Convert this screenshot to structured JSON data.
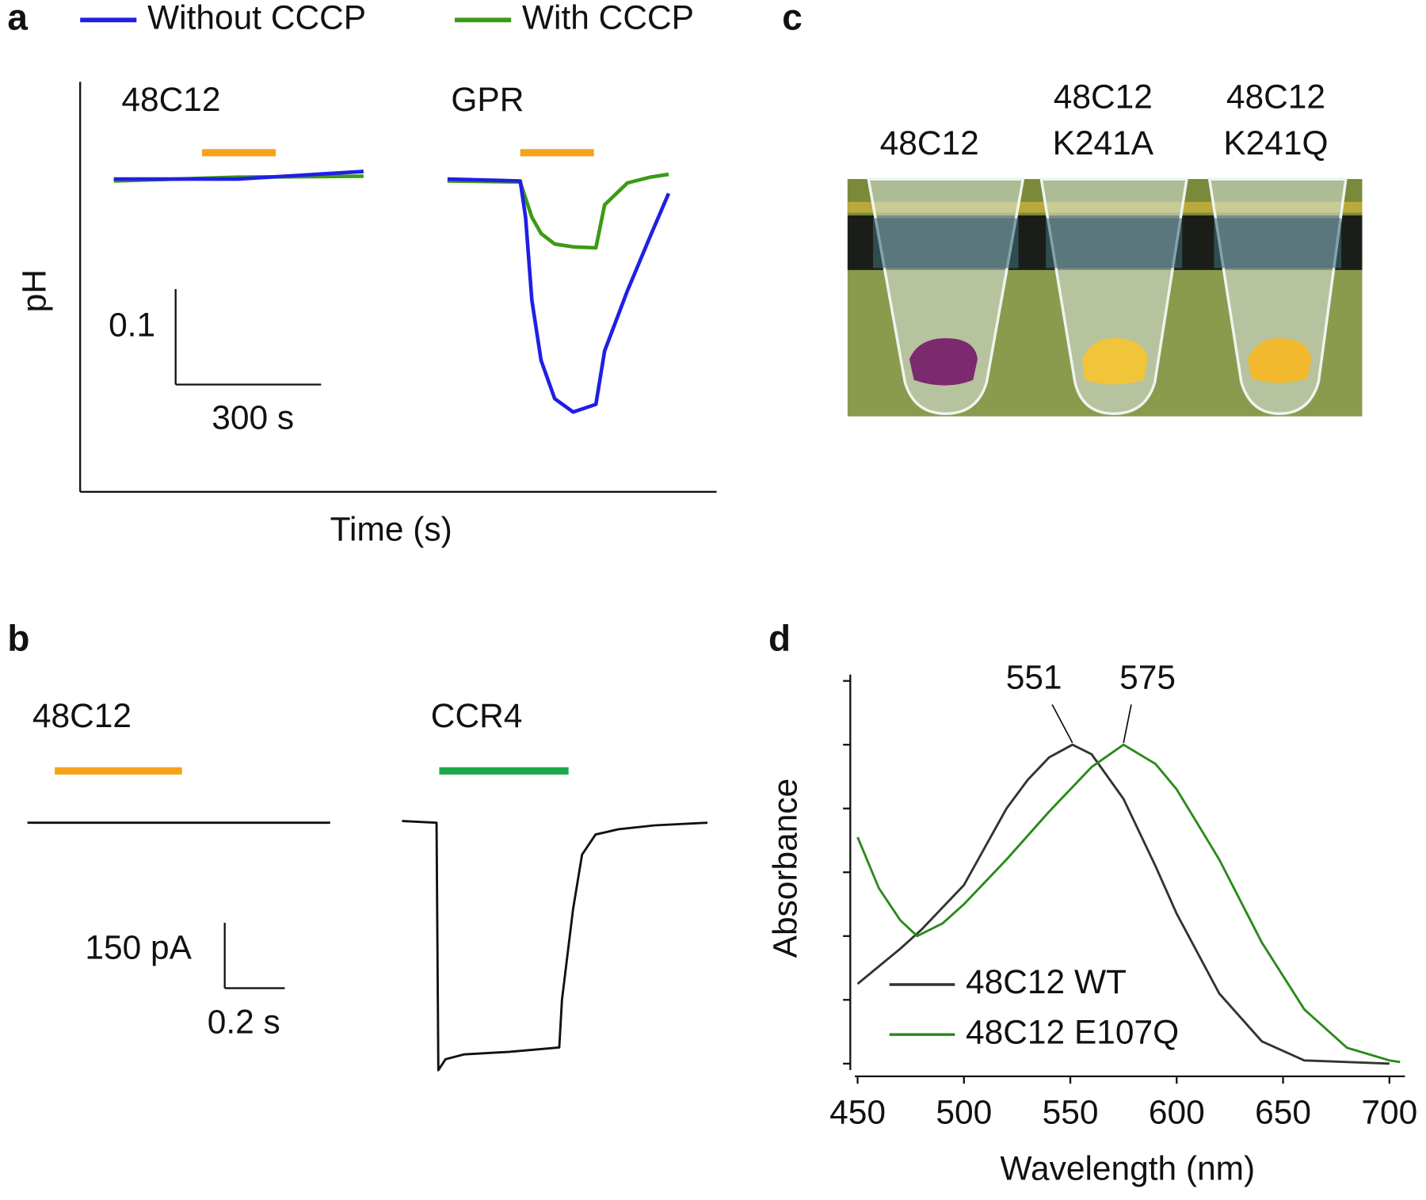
{
  "chart_data": [
    {
      "type": "line",
      "panel_label": "a",
      "y_label": "pH",
      "x_label": "Time (s)",
      "series": [
        {
          "name": "Without CCCP",
          "color": "#1f1fe6"
        },
        {
          "name": "With CCCP",
          "color": "#3c9a14"
        }
      ],
      "light_color": "#f5a31a",
      "traces": [
        {
          "name": "48C12",
          "light": [
            182,
            334
          ],
          "x": [
            0,
            255,
            515
          ],
          "values": [
            [
              0,
              0,
              0.008
            ],
            [
              -0.002,
              0.002,
              0.003
            ]
          ]
        },
        {
          "name": "GPR",
          "light": [
            150,
            302
          ],
          "x": [
            0,
            150,
            161,
            174,
            193,
            221,
            259,
            306,
            324,
            371,
            418,
            456
          ],
          "values": [
            [
              0,
              -0.002,
              -0.04,
              -0.127,
              -0.19,
              -0.23,
              -0.244,
              -0.236,
              -0.18,
              -0.117,
              -0.06,
              -0.015
            ],
            [
              -0.002,
              -0.003,
              -0.02,
              -0.04,
              -0.057,
              -0.068,
              -0.071,
              -0.072,
              -0.027,
              -0.004,
              0.002,
              0.005
            ]
          ]
        }
      ],
      "scale_bar": {
        "y": 0.1,
        "x": {
          "value": 300,
          "label": "300 s"
        }
      }
    },
    {
      "type": "line",
      "panel_label": "b",
      "color": "#111111",
      "traces": [
        {
          "name": "48C12",
          "light": [
            0.091,
            0.515
          ],
          "light_color": "#f5a31a",
          "x": [
            0,
            1.009
          ],
          "values": [
            0,
            0
          ]
        },
        {
          "name": "CCR4",
          "light": [
            0.124,
            0.555
          ],
          "light_color": "#1aa84a",
          "x": [
            0,
            0.115,
            0.121,
            0.145,
            0.206,
            0.358,
            0.524,
            0.533,
            0.57,
            0.6,
            0.645,
            0.721,
            0.842,
            1.018
          ],
          "values": [
            4,
            0,
            -567,
            -542,
            -531,
            -525,
            -515,
            -406,
            -198,
            -73,
            -27,
            -15,
            -6,
            0
          ]
        }
      ],
      "scale_bar": {
        "y": {
          "value": 150,
          "label": "150 pA"
        },
        "x": {
          "value": 0.2,
          "label": "0.2 s"
        }
      }
    },
    {
      "type": "line",
      "panel_label": "d",
      "x_label": "Wavelength (nm)",
      "y_label": "Absorbance",
      "xlim": [
        448.7,
        707.3
      ],
      "xticks": [
        450,
        500,
        550,
        600,
        650,
        700
      ],
      "ylim": [
        -0.02,
        1.22
      ],
      "yticks": [
        0,
        0.2,
        0.4,
        0.6,
        0.8,
        1,
        1.2
      ],
      "series": [
        {
          "name": "48C12 WT",
          "color": "#333333",
          "x": [
            450,
            470,
            480,
            500,
            520,
            530,
            540,
            551,
            560,
            575,
            590,
            600,
            620,
            640,
            660,
            700
          ],
          "values": [
            0.25,
            0.36,
            0.42,
            0.56,
            0.8,
            0.89,
            0.96,
            1,
            0.97,
            0.83,
            0.62,
            0.47,
            0.22,
            0.07,
            0.01,
            0
          ]
        },
        {
          "name": "48C12 E107Q",
          "color": "#2a8a1a",
          "x": [
            450,
            460,
            470,
            478,
            490,
            500,
            520,
            540,
            560,
            575,
            590,
            600,
            620,
            640,
            660,
            680,
            700,
            705
          ],
          "values": [
            0.71,
            0.55,
            0.45,
            0.4,
            0.44,
            0.5,
            0.64,
            0.79,
            0.93,
            1,
            0.94,
            0.86,
            0.64,
            0.38,
            0.17,
            0.05,
            0.01,
            0.005
          ]
        }
      ],
      "peaks": [
        551,
        575
      ]
    }
  ],
  "image_panel": {
    "panel_label": "c",
    "tube_labels": [
      [
        "48C12"
      ],
      [
        "48C12",
        "K241A"
      ],
      [
        "48C12",
        "K241Q"
      ]
    ]
  }
}
